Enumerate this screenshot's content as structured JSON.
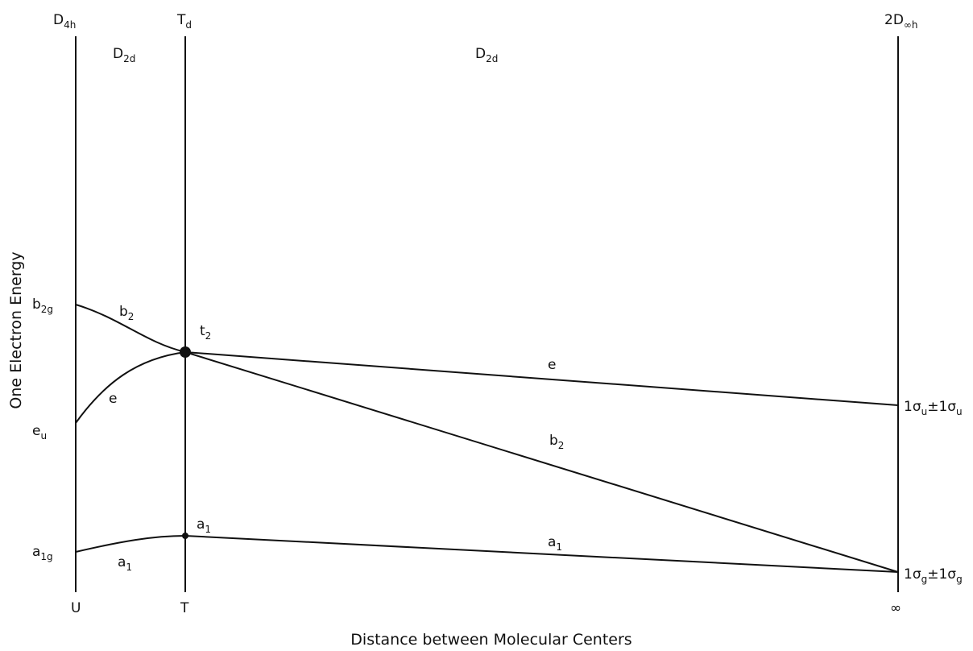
{
  "symmetry": {
    "d4h": [
      "D",
      "4h"
    ],
    "td": [
      "T",
      "d"
    ],
    "d_inf_h": [
      "2D",
      "∞h"
    ],
    "d2d_left": [
      "D",
      "2d"
    ],
    "d2d_right": [
      "D",
      "2d"
    ]
  },
  "x_points": {
    "u": "U",
    "t": "T",
    "inf": "∞"
  },
  "axis": {
    "x_title": "Distance between Molecular Centers",
    "y_title": "One Electron Energy"
  },
  "left_levels": {
    "b2g": [
      "b",
      "2g"
    ],
    "eu": [
      "e",
      "u"
    ],
    "a1g": [
      "a",
      "1g"
    ]
  },
  "right_levels": {
    "upper": [
      "1σ",
      "u",
      "±1σ",
      "u"
    ],
    "lower": [
      "1σ",
      "g",
      "±1σ",
      "g"
    ]
  },
  "curve_labels": {
    "b2_left": [
      "b",
      "2"
    ],
    "t2": [
      "t",
      "2"
    ],
    "e_left": "e",
    "e_right": "e",
    "b2_right": [
      "b",
      "2"
    ],
    "a1_td": [
      "a",
      "1"
    ],
    "a1_left": [
      "a",
      "1"
    ],
    "a1_right": [
      "a",
      "1"
    ]
  }
}
